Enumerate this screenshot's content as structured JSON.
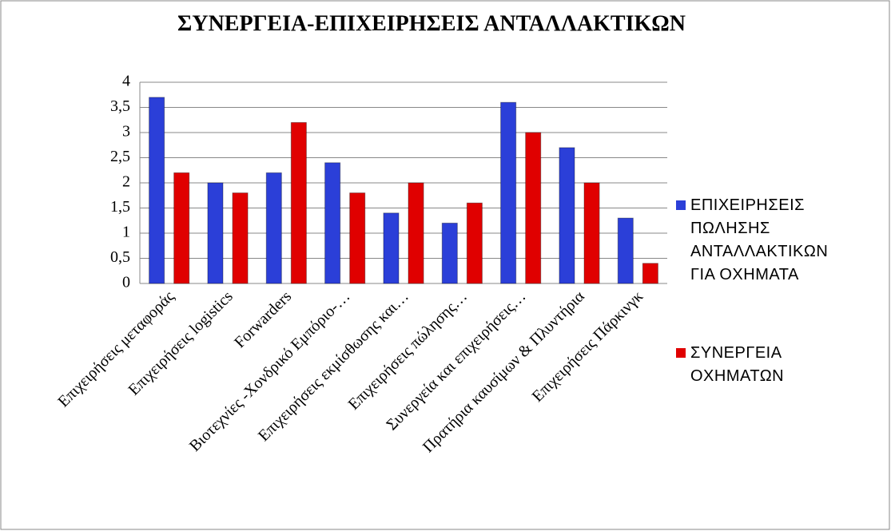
{
  "chart_data": {
    "type": "bar",
    "title": "ΣΥΝΕΡΓΕΙΑ-ΕΠΙΧΕΙΡΗΣΕΙΣ ΑΝΤΑΛΛΑΚΤΙΚΩΝ",
    "categories": [
      "Επιχειρήσεις μεταφοράς",
      "Επιχειρήσεις logistics",
      "Forwarders",
      "Βιοτεχνίες -Χονδρικό Εμπόριο-…",
      "Επιχειρήσεις εκμίσθωσης και…",
      "Επιχειρήσεις πώλησης…",
      "Συνεργεία και επιχειρήσεις…",
      "Πρατήρια καυσίμων & Πλυντήρια",
      "Επιχειρήσεις Πάρκινγκ"
    ],
    "series": [
      {
        "name": "ΕΠΙΧΕΙΡΗΣΕΙΣ ΠΩΛΗΣΗΣ ΑΝΤΑΛΛΑΚΤΙΚΩΝ ΓΙΑ ΟΧΗΜΑΤΑ",
        "color": "#2b3fd8",
        "values": [
          3.7,
          2.0,
          2.2,
          2.4,
          1.4,
          1.2,
          3.6,
          2.7,
          1.3
        ]
      },
      {
        "name": "ΣΥΝΕΡΓΕΙΑ ΟΧΗΜΑΤΩΝ",
        "color": "#e00000",
        "values": [
          2.2,
          1.8,
          3.2,
          1.8,
          2.0,
          1.6,
          3.0,
          2.0,
          0.4
        ]
      }
    ],
    "ylim": [
      0,
      4
    ],
    "yticks": [
      0,
      {
        "value": 0.5,
        "label": "0,5"
      },
      1,
      {
        "value": 1.5,
        "label": "1,5"
      },
      2,
      {
        "value": 2.5,
        "label": "2,5"
      },
      3,
      {
        "value": 3.5,
        "label": "3,5"
      },
      4
    ],
    "grid": true,
    "legend": "right"
  }
}
